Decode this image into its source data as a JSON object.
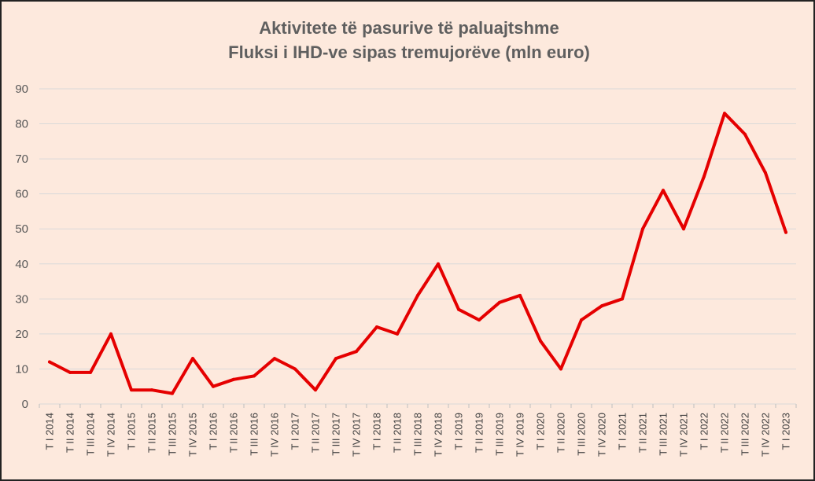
{
  "chart_data": {
    "type": "line",
    "title": "Aktivitete të pasurive të paluajtshme",
    "subtitle": "Fluksi i IHD-ve sipas tremujorëve (mln euro)",
    "xlabel": "",
    "ylabel": "",
    "ylim": [
      0,
      90
    ],
    "yticks": [
      "0",
      "10",
      "20",
      "30",
      "40",
      "50",
      "60",
      "70",
      "80",
      "90"
    ],
    "grid": true,
    "legend": "none",
    "colors": {
      "line": "#e50000",
      "grid": "#d9d9d9",
      "background": "#fde9dd"
    },
    "categories": [
      "T I 2014",
      "T II 2014",
      "T III 2014",
      "T IV 2014",
      "T I 2015",
      "T II 2015",
      "T III 2015",
      "T IV 2015",
      "T I 2016",
      "T II 2016",
      "T III 2016",
      "T IV 2016",
      "T I 2017",
      "T II 2017",
      "T III 2017",
      "T IV 2017",
      "T I 2018",
      "T II 2018",
      "T III 2018",
      "T IV 2018",
      "T I 2019",
      "T II 2019",
      "T III 2019",
      "T IV 2019",
      "T I 2020",
      "T II 2020",
      "T III 2020",
      "T IV 2020",
      "T I 2021",
      "T II 2021",
      "T III 2021",
      "T IV 2021",
      "T I 2022",
      "T II 2022",
      "T III 2022",
      "T IV 2022",
      "T I 2023"
    ],
    "series": [
      {
        "values": [
          12,
          9,
          9,
          20,
          4,
          4,
          3,
          13,
          5,
          7,
          8,
          13,
          10,
          4,
          13,
          15,
          22,
          20,
          31,
          40,
          27,
          24,
          29,
          31,
          18,
          10,
          24,
          28,
          30,
          50,
          61,
          50,
          65,
          83,
          77,
          66,
          49
        ]
      }
    ]
  }
}
